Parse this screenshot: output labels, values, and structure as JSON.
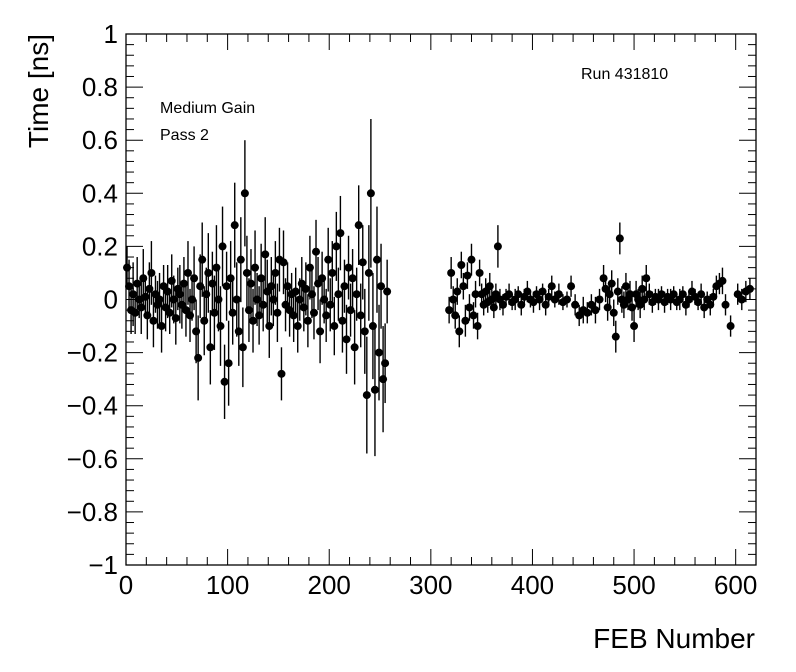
{
  "chart_data": {
    "type": "scatter",
    "xlabel": "FEB Number",
    "ylabel": "Time [ns]",
    "xlim": [
      0,
      620
    ],
    "ylim": [
      -1,
      1
    ],
    "x_ticks": [
      0,
      100,
      200,
      300,
      400,
      500,
      600
    ],
    "y_ticks": [
      -1,
      -0.8,
      -0.6,
      -0.4,
      -0.2,
      0,
      0.2,
      0.4,
      0.6,
      0.8,
      1
    ],
    "annotations": [
      "Medium Gain",
      "Pass 2",
      "Run 431810"
    ],
    "grid": false,
    "legend": "none",
    "marker_color": "#000000",
    "series": [
      {
        "points": [
          [
            1,
            0.12,
            0.08
          ],
          [
            3,
            0.05,
            0.1
          ],
          [
            5,
            -0.04,
            0.09
          ],
          [
            7,
            0.02,
            0.12
          ],
          [
            9,
            -0.05,
            0.08
          ],
          [
            11,
            0.06,
            0.1
          ],
          [
            13,
            0.0,
            0.07
          ],
          [
            15,
            -0.03,
            0.1
          ],
          [
            17,
            0.08,
            0.11
          ],
          [
            19,
            0.01,
            0.08
          ],
          [
            21,
            -0.06,
            0.09
          ],
          [
            23,
            0.04,
            0.1
          ],
          [
            25,
            0.1,
            0.12
          ],
          [
            27,
            -0.08,
            0.1
          ],
          [
            29,
            0.02,
            0.07
          ],
          [
            31,
            -0.02,
            0.09
          ],
          [
            33,
            0.0,
            0.1
          ],
          [
            35,
            -0.1,
            0.1
          ],
          [
            37,
            0.05,
            0.08
          ],
          [
            39,
            -0.03,
            0.09
          ],
          [
            41,
            0.03,
            0.1
          ],
          [
            43,
            -0.05,
            0.08
          ],
          [
            45,
            0.07,
            0.1
          ],
          [
            47,
            0.0,
            0.09
          ],
          [
            49,
            -0.07,
            0.1
          ],
          [
            51,
            0.04,
            0.08
          ],
          [
            53,
            0.02,
            0.11
          ],
          [
            55,
            -0.02,
            0.09
          ],
          [
            57,
            0.06,
            0.1
          ],
          [
            59,
            -0.04,
            0.1
          ],
          [
            61,
            0.1,
            0.12
          ],
          [
            63,
            -0.06,
            0.1
          ],
          [
            65,
            0.0,
            0.08
          ],
          [
            67,
            0.08,
            0.12
          ],
          [
            69,
            -0.12,
            0.12
          ],
          [
            71,
            -0.22,
            0.16
          ],
          [
            73,
            0.05,
            0.12
          ],
          [
            75,
            0.15,
            0.14
          ],
          [
            77,
            -0.08,
            0.13
          ],
          [
            79,
            0.02,
            0.1
          ],
          [
            81,
            0.1,
            0.15
          ],
          [
            83,
            -0.18,
            0.14
          ],
          [
            85,
            0.06,
            0.12
          ],
          [
            87,
            -0.05,
            0.14
          ],
          [
            89,
            0.12,
            0.16
          ],
          [
            91,
            0.0,
            0.12
          ],
          [
            93,
            -0.1,
            0.15
          ],
          [
            95,
            0.2,
            0.15
          ],
          [
            97,
            -0.31,
            0.14
          ],
          [
            99,
            0.05,
            0.13
          ],
          [
            101,
            -0.24,
            0.16
          ],
          [
            103,
            0.08,
            0.14
          ],
          [
            105,
            -0.05,
            0.12
          ],
          [
            107,
            0.28,
            0.16
          ],
          [
            109,
            0.0,
            0.14
          ],
          [
            111,
            -0.12,
            0.13
          ],
          [
            113,
            0.15,
            0.16
          ],
          [
            115,
            -0.18,
            0.15
          ],
          [
            117,
            0.4,
            0.2
          ],
          [
            119,
            0.1,
            0.14
          ],
          [
            121,
            -0.04,
            0.12
          ],
          [
            123,
            0.06,
            0.13
          ],
          [
            125,
            -0.08,
            0.12
          ],
          [
            127,
            0.12,
            0.14
          ],
          [
            129,
            0.0,
            0.1
          ],
          [
            131,
            -0.06,
            0.11
          ],
          [
            133,
            0.08,
            0.13
          ],
          [
            135,
            -0.02,
            0.1
          ],
          [
            137,
            0.17,
            0.14
          ],
          [
            139,
            0.03,
            0.12
          ],
          [
            141,
            -0.1,
            0.12
          ],
          [
            143,
            0.05,
            0.11
          ],
          [
            145,
            0.0,
            0.1
          ],
          [
            147,
            0.1,
            0.12
          ],
          [
            149,
            -0.05,
            0.11
          ],
          [
            151,
            0.15,
            0.12
          ],
          [
            153,
            -0.28,
            0.1
          ],
          [
            155,
            0.14,
            0.12
          ],
          [
            157,
            -0.02,
            0.1
          ],
          [
            159,
            0.05,
            0.09
          ],
          [
            161,
            -0.04,
            0.1
          ],
          [
            163,
            0.02,
            0.08
          ],
          [
            165,
            -0.06,
            0.1
          ],
          [
            167,
            0.03,
            0.09
          ],
          [
            169,
            -0.1,
            0.1
          ],
          [
            171,
            0.0,
            0.08
          ],
          [
            173,
            0.06,
            0.1
          ],
          [
            175,
            -0.03,
            0.09
          ],
          [
            177,
            0.04,
            0.1
          ],
          [
            179,
            -0.08,
            0.1
          ],
          [
            181,
            0.12,
            0.12
          ],
          [
            183,
            0.02,
            0.09
          ],
          [
            185,
            -0.05,
            0.1
          ],
          [
            187,
            0.18,
            0.12
          ],
          [
            189,
            0.06,
            0.1
          ],
          [
            191,
            -0.12,
            0.12
          ],
          [
            193,
            0.08,
            0.1
          ],
          [
            195,
            0.0,
            0.09
          ],
          [
            197,
            -0.06,
            0.1
          ],
          [
            199,
            0.15,
            0.12
          ],
          [
            201,
            -0.02,
            0.1
          ],
          [
            203,
            0.1,
            0.12
          ],
          [
            205,
            -0.1,
            0.11
          ],
          [
            207,
            0.2,
            0.13
          ],
          [
            209,
            0.02,
            0.1
          ],
          [
            211,
            0.25,
            0.14
          ],
          [
            213,
            -0.08,
            0.12
          ],
          [
            215,
            0.05,
            0.1
          ],
          [
            217,
            -0.15,
            0.13
          ],
          [
            219,
            0.12,
            0.12
          ],
          [
            221,
            -0.04,
            0.1
          ],
          [
            223,
            0.08,
            0.11
          ],
          [
            225,
            -0.18,
            0.14
          ],
          [
            227,
            0.02,
            0.1
          ],
          [
            229,
            0.28,
            0.15
          ],
          [
            231,
            -0.06,
            0.12
          ],
          [
            233,
            0.14,
            0.14
          ],
          [
            235,
            -0.12,
            0.16
          ],
          [
            237,
            -0.36,
            0.22
          ],
          [
            239,
            0.1,
            0.18
          ],
          [
            241,
            0.4,
            0.28
          ],
          [
            243,
            -0.1,
            0.2
          ],
          [
            245,
            -0.34,
            0.25
          ],
          [
            247,
            0.15,
            0.2
          ],
          [
            249,
            -0.2,
            0.18
          ],
          [
            251,
            0.05,
            0.16
          ],
          [
            253,
            -0.3,
            0.2
          ],
          [
            255,
            -0.24,
            0.15
          ],
          [
            257,
            0.03,
            0.12
          ]
        ]
      },
      {
        "points": [
          [
            318,
            -0.04,
            0.05
          ],
          [
            320,
            0.1,
            0.06
          ],
          [
            322,
            0.0,
            0.05
          ],
          [
            324,
            -0.06,
            0.05
          ],
          [
            326,
            0.03,
            0.05
          ],
          [
            328,
            -0.12,
            0.06
          ],
          [
            330,
            0.13,
            0.05
          ],
          [
            332,
            0.05,
            0.05
          ],
          [
            334,
            -0.08,
            0.06
          ],
          [
            336,
            0.09,
            0.05
          ],
          [
            338,
            -0.03,
            0.05
          ],
          [
            340,
            0.15,
            0.06
          ],
          [
            342,
            -0.06,
            0.05
          ],
          [
            344,
            0.02,
            0.05
          ],
          [
            346,
            -0.1,
            0.05
          ],
          [
            348,
            0.1,
            0.05
          ],
          [
            350,
            0.02,
            0.04
          ],
          [
            352,
            -0.02,
            0.04
          ],
          [
            354,
            0.03,
            0.05
          ],
          [
            356,
            -0.01,
            0.04
          ],
          [
            358,
            0.05,
            0.05
          ],
          [
            360,
            0.0,
            0.04
          ],
          [
            362,
            -0.03,
            0.04
          ],
          [
            364,
            0.02,
            0.04
          ],
          [
            366,
            0.2,
            0.08
          ],
          [
            368,
            0.0,
            0.04
          ],
          [
            371,
            -0.02,
            0.04
          ],
          [
            374,
            0.01,
            0.03
          ],
          [
            377,
            0.02,
            0.04
          ],
          [
            380,
            -0.01,
            0.03
          ],
          [
            383,
            0.0,
            0.04
          ],
          [
            386,
            0.02,
            0.03
          ],
          [
            389,
            -0.02,
            0.04
          ],
          [
            392,
            0.01,
            0.03
          ],
          [
            395,
            0.03,
            0.04
          ],
          [
            398,
            0.0,
            0.03
          ],
          [
            401,
            -0.01,
            0.04
          ],
          [
            404,
            0.02,
            0.03
          ],
          [
            407,
            0.0,
            0.04
          ],
          [
            410,
            0.03,
            0.03
          ],
          [
            413,
            -0.02,
            0.04
          ],
          [
            416,
            0.01,
            0.03
          ],
          [
            419,
            0.05,
            0.04
          ],
          [
            422,
            0.0,
            0.03
          ],
          [
            426,
            0.02,
            0.04
          ],
          [
            430,
            -0.01,
            0.03
          ],
          [
            434,
            0.0,
            0.03
          ],
          [
            438,
            0.05,
            0.04
          ],
          [
            442,
            -0.02,
            0.04
          ],
          [
            446,
            -0.06,
            0.04
          ],
          [
            450,
            -0.04,
            0.05
          ],
          [
            454,
            -0.05,
            0.04
          ],
          [
            458,
            -0.02,
            0.04
          ],
          [
            462,
            -0.04,
            0.05
          ],
          [
            466,
            0.0,
            0.04
          ],
          [
            470,
            0.08,
            0.05
          ],
          [
            472,
            0.04,
            0.05
          ],
          [
            474,
            -0.03,
            0.05
          ],
          [
            476,
            0.02,
            0.04
          ],
          [
            478,
            0.06,
            0.05
          ],
          [
            480,
            -0.05,
            0.05
          ],
          [
            482,
            -0.14,
            0.06
          ],
          [
            484,
            0.03,
            0.05
          ],
          [
            486,
            0.23,
            0.06
          ],
          [
            488,
            0.0,
            0.05
          ],
          [
            490,
            -0.02,
            0.05
          ],
          [
            492,
            0.05,
            0.05
          ],
          [
            494,
            0.0,
            0.04
          ],
          [
            496,
            0.02,
            0.05
          ],
          [
            498,
            -0.03,
            0.05
          ],
          [
            500,
            -0.1,
            0.06
          ],
          [
            502,
            0.02,
            0.05
          ],
          [
            504,
            0.0,
            0.04
          ],
          [
            506,
            -0.02,
            0.05
          ],
          [
            508,
            0.04,
            0.05
          ],
          [
            510,
            0.0,
            0.04
          ],
          [
            512,
            0.08,
            0.05
          ],
          [
            515,
            0.02,
            0.04
          ],
          [
            518,
            -0.01,
            0.04
          ],
          [
            521,
            0.01,
            0.03
          ],
          [
            524,
            0.0,
            0.04
          ],
          [
            527,
            0.02,
            0.03
          ],
          [
            530,
            -0.01,
            0.04
          ],
          [
            533,
            0.01,
            0.03
          ],
          [
            536,
            0.0,
            0.04
          ],
          [
            539,
            0.02,
            0.03
          ],
          [
            542,
            -0.01,
            0.03
          ],
          [
            545,
            0.0,
            0.04
          ],
          [
            548,
            0.02,
            0.03
          ],
          [
            551,
            -0.02,
            0.04
          ],
          [
            554,
            0.0,
            0.03
          ],
          [
            557,
            0.03,
            0.04
          ],
          [
            560,
            0.01,
            0.03
          ],
          [
            563,
            -0.01,
            0.03
          ],
          [
            566,
            0.02,
            0.04
          ],
          [
            569,
            -0.03,
            0.04
          ],
          [
            572,
            0.0,
            0.03
          ],
          [
            575,
            -0.02,
            0.04
          ],
          [
            578,
            0.01,
            0.03
          ],
          [
            581,
            0.05,
            0.04
          ],
          [
            584,
            0.06,
            0.04
          ],
          [
            587,
            0.07,
            0.05
          ],
          [
            590,
            -0.02,
            0.04
          ],
          [
            595,
            -0.1,
            0.04
          ],
          [
            602,
            0.02,
            0.04
          ],
          [
            606,
            0.0,
            0.04
          ],
          [
            610,
            0.03,
            0.04
          ],
          [
            614,
            0.04,
            0.04
          ]
        ]
      }
    ]
  }
}
